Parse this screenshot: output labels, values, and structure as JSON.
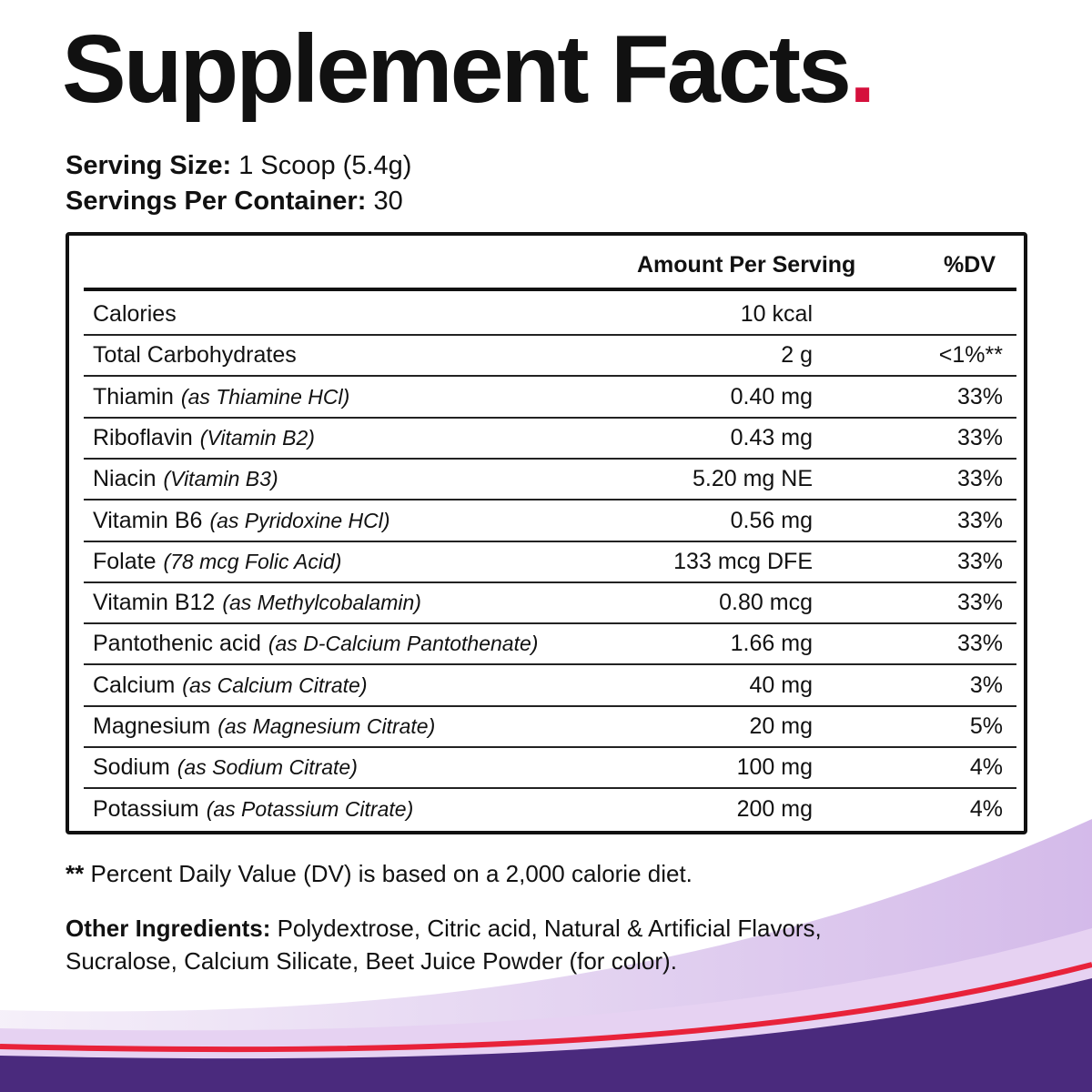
{
  "header": {
    "title": "Supplement Facts",
    "title_dot": "."
  },
  "serving": {
    "size_label": "Serving Size:",
    "size_value": "1 Scoop (5.4g)",
    "servings_label": "Servings Per Container:",
    "servings_value": "30"
  },
  "table": {
    "columns": [
      "Amount Per Serving",
      "%DV"
    ],
    "rows": [
      {
        "name": "Calories",
        "amount": "10 kcal"
      },
      {
        "name": "Total Carbohydrates",
        "amount": "2 g",
        "dv": "<1%**"
      },
      {
        "name": "Thiamin",
        "note": "(as Thiamine HCl)",
        "amount": "0.40 mg",
        "dv": "33%"
      },
      {
        "name": "Riboflavin",
        "note": "(Vitamin B2)",
        "amount": "0.43 mg",
        "dv": "33%"
      },
      {
        "name": "Niacin",
        "note": "(Vitamin B3)",
        "amount": "5.20 mg NE",
        "dv": "33%"
      },
      {
        "name": "Vitamin B6",
        "note": "(as Pyridoxine HCl)",
        "amount": "0.56 mg",
        "dv": "33%"
      },
      {
        "name": "Folate",
        "note": "(78 mcg Folic Acid)",
        "amount": "133 mcg DFE",
        "dv": "33%"
      },
      {
        "name": "Vitamin B12",
        "note": "(as Methylcobalamin)",
        "amount": "0.80 mcg",
        "dv": "33%"
      },
      {
        "name": "Pantothenic acid",
        "note": "(as D-Calcium Pantothenate)",
        "amount": "1.66 mg",
        "dv": "33%"
      },
      {
        "name": "Calcium",
        "note": "(as Calcium Citrate)",
        "amount": "40 mg",
        "dv": "3%"
      },
      {
        "name": "Magnesium",
        "note": "(as Magnesium Citrate)",
        "amount": "20 mg",
        "dv": "5%"
      },
      {
        "name": "Sodium",
        "note": "(as Sodium Citrate)",
        "amount": "100 mg",
        "dv": "4%"
      },
      {
        "name": "Potassium",
        "note": "(as Potassium Citrate)",
        "amount": "200 mg",
        "dv": "4%"
      }
    ]
  },
  "footnote": {
    "marker": "**",
    "text": "Percent Daily Value (DV) is based on a 2,000 calorie diet."
  },
  "ingredients": {
    "label": "Other Ingredients:",
    "text": "Polydextrose, Citric acid, Natural & Artificial Flavors, Sucralose, Calcium Silicate, Beet Juice Powder (for color)."
  }
}
